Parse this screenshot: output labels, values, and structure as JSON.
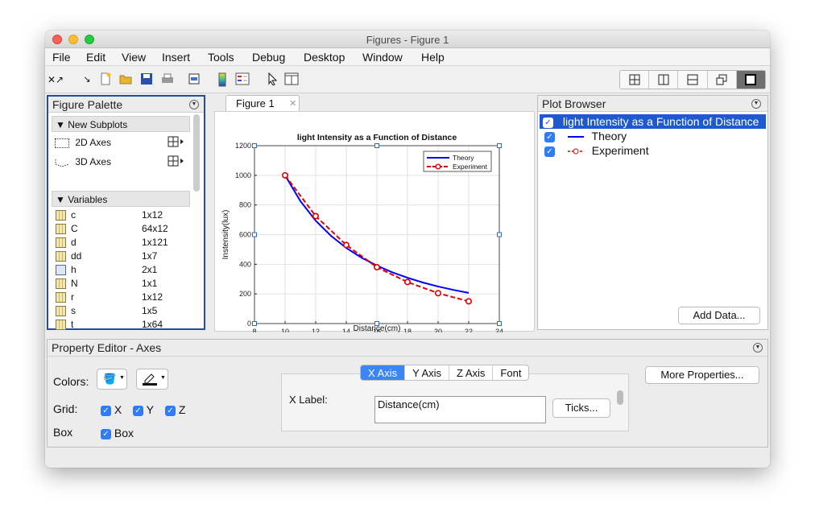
{
  "window": {
    "title": "Figures - Figure 1"
  },
  "menu": [
    "File",
    "Edit",
    "View",
    "Insert",
    "Tools",
    "Debug",
    "Desktop",
    "Window",
    "Help"
  ],
  "toolbar_icons": [
    "undock-icon",
    "arrow-icon",
    "new-figure-icon",
    "open-icon",
    "save-icon",
    "print-icon",
    "print-preview-icon",
    "colorbar-icon",
    "legend-icon",
    "pointer-icon",
    "property-editor-icon"
  ],
  "dock_icons": [
    "tile-icon",
    "split-vertical-icon",
    "split-horizontal-icon",
    "float-icon",
    "maximize-icon"
  ],
  "palette": {
    "title": "Figure Palette",
    "new_subplots": "New Subplots",
    "axes2d": "2D Axes",
    "axes3d": "3D Axes",
    "variables_label": "Variables",
    "variables": [
      {
        "name": "c",
        "size": "1x12",
        "icon": "matrix"
      },
      {
        "name": "C",
        "size": "64x12",
        "icon": "matrix"
      },
      {
        "name": "d",
        "size": "1x121",
        "icon": "matrix"
      },
      {
        "name": "dd",
        "size": "1x7",
        "icon": "matrix"
      },
      {
        "name": "h",
        "size": "2x1",
        "icon": "object"
      },
      {
        "name": "N",
        "size": "1x1",
        "icon": "matrix"
      },
      {
        "name": "r",
        "size": "1x12",
        "icon": "matrix"
      },
      {
        "name": "s",
        "size": "1x5",
        "icon": "matrix"
      },
      {
        "name": "t",
        "size": "1x64",
        "icon": "matrix"
      }
    ]
  },
  "figure_tab": {
    "label": "Figure 1",
    "close": "✕"
  },
  "chart_data": {
    "type": "line",
    "title": "light Intensity as a Function of Distance",
    "xlabel": "Distance(cm)",
    "ylabel": "Instensity(lux)",
    "xlim": [
      8,
      24
    ],
    "ylim": [
      0,
      1200
    ],
    "xticks": [
      8,
      10,
      12,
      14,
      16,
      18,
      20,
      22,
      24
    ],
    "yticks": [
      0,
      200,
      400,
      600,
      800,
      1000,
      1200
    ],
    "grid": true,
    "legend_position": "top-right",
    "series": [
      {
        "name": "Theory",
        "color": "#0000ff",
        "style": "solid",
        "marker": "none",
        "x": [
          10,
          11,
          12,
          13,
          14,
          15,
          16,
          17,
          18,
          19,
          20,
          21,
          22
        ],
        "y": [
          1000,
          826,
          694,
          592,
          510,
          444,
          391,
          346,
          309,
          277,
          250,
          227,
          207
        ]
      },
      {
        "name": "Experiment",
        "color": "#e00000",
        "style": "dashed",
        "marker": "circle",
        "x": [
          10,
          12,
          14,
          16,
          18,
          20,
          22
        ],
        "y": [
          1000,
          725,
          530,
          380,
          280,
          205,
          150
        ]
      }
    ]
  },
  "plot_browser": {
    "title": "Plot Browser",
    "items": [
      {
        "label": "light Intensity as a Function of Distance",
        "checked": true,
        "selected": true
      },
      {
        "label": "Theory",
        "checked": true,
        "line": "theory"
      },
      {
        "label": "Experiment",
        "checked": true,
        "line": "experiment"
      }
    ],
    "add_data": "Add Data..."
  },
  "property_editor": {
    "title": "Property Editor - Axes",
    "colors_label": "Colors:",
    "grid_label": "Grid:",
    "grid": [
      {
        "label": "X",
        "checked": true
      },
      {
        "label": "Y",
        "checked": true
      },
      {
        "label": "Z",
        "checked": true
      }
    ],
    "box_label": "Box",
    "box_check": {
      "label": "Box",
      "checked": true
    },
    "tabs": [
      {
        "label": "X Axis",
        "selected": true
      },
      {
        "label": "Y Axis"
      },
      {
        "label": "Z Axis"
      },
      {
        "label": "Font"
      }
    ],
    "xlabel_label": "X Label:",
    "xlabel_value": "Distance(cm)",
    "ticks_button": "Ticks...",
    "more_button": "More Properties..."
  }
}
